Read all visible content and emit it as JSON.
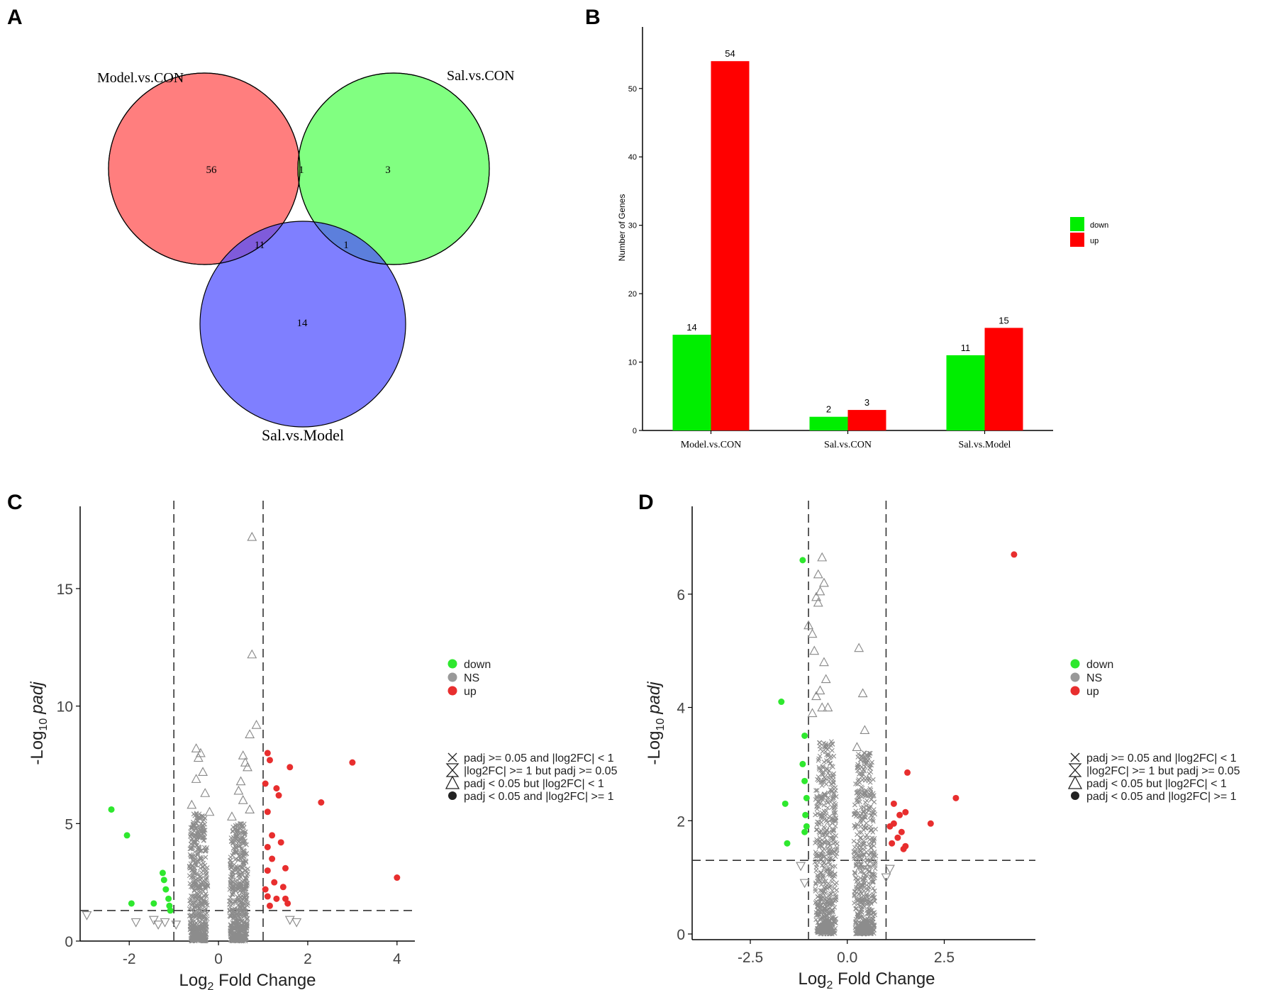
{
  "panel_labels": [
    "A",
    "B",
    "C",
    "D"
  ],
  "chart_data": [
    {
      "panel": "A",
      "type": "venn",
      "sets": [
        {
          "name": "Model.vs.CON",
          "color": "#ff5a5a"
        },
        {
          "name": "Sal.vs.CON",
          "color": "#33ff33"
        },
        {
          "name": "Sal.vs.Model",
          "color": "#4d4dff"
        }
      ],
      "regions": {
        "model_only": "56",
        "sal_con_only": "3",
        "sal_model_only": "14",
        "model_and_sal_con": "1",
        "model_and_sal_model": "11",
        "sal_con_and_sal_model": "1"
      }
    },
    {
      "panel": "B",
      "type": "bar",
      "categories": [
        "Model.vs.CON",
        "Sal.vs.CON",
        "Sal.vs.Model"
      ],
      "series": [
        {
          "name": "down",
          "color": "#00ee00",
          "values": [
            14,
            2,
            11
          ]
        },
        {
          "name": "up",
          "color": "#ff0000",
          "values": [
            54,
            3,
            15
          ]
        }
      ],
      "ylabel": "Number of Genes",
      "ylim": [
        0,
        59
      ],
      "yticks": [
        0,
        10,
        20,
        30,
        40,
        50
      ]
    },
    {
      "panel": "C",
      "type": "scatter",
      "xlabel_main": "Log",
      "xlabel_sub": "2",
      "xlabel_rest": " Fold Change",
      "ylabel_pre": "-Log",
      "ylabel_sub": "10",
      "ylabel_italic": "padj",
      "xlim": [
        -3.1,
        4.4
      ],
      "ylim": [
        0,
        18.5
      ],
      "xticks": [
        -2,
        0,
        2,
        4
      ],
      "xtick_labels": [
        "-2",
        "0",
        "2",
        "4"
      ],
      "yticks": [
        0,
        5,
        10,
        15
      ],
      "ytick_labels": [
        "0",
        "5",
        "10",
        "15"
      ],
      "vlines": [
        -1,
        1
      ],
      "hline": 1.3,
      "down_points": [
        [
          -2.4,
          5.6
        ],
        [
          -2.05,
          4.5
        ],
        [
          -1.95,
          1.6
        ],
        [
          -1.45,
          1.6
        ],
        [
          -1.25,
          2.9
        ],
        [
          -1.22,
          2.6
        ],
        [
          -1.18,
          2.2
        ],
        [
          -1.12,
          1.8
        ],
        [
          -1.1,
          1.5
        ],
        [
          -1.08,
          1.3
        ]
      ],
      "up_points": [
        [
          1.1,
          8.0
        ],
        [
          1.15,
          7.7
        ],
        [
          1.05,
          6.7
        ],
        [
          1.3,
          6.5
        ],
        [
          1.35,
          6.2
        ],
        [
          1.6,
          7.4
        ],
        [
          3.0,
          7.6
        ],
        [
          2.3,
          5.9
        ],
        [
          4.0,
          2.7
        ],
        [
          1.1,
          5.5
        ],
        [
          1.2,
          4.5
        ],
        [
          1.4,
          4.2
        ],
        [
          1.5,
          3.1
        ],
        [
          1.1,
          3.0
        ],
        [
          1.25,
          2.5
        ],
        [
          1.05,
          2.2
        ],
        [
          1.3,
          1.8
        ],
        [
          1.15,
          1.5
        ],
        [
          1.5,
          1.8
        ],
        [
          1.1,
          4.0
        ],
        [
          1.2,
          3.5
        ],
        [
          1.45,
          2.3
        ],
        [
          1.55,
          1.6
        ],
        [
          1.1,
          1.9
        ]
      ],
      "ns_triangles": [
        [
          0.75,
          17.2
        ],
        [
          0.75,
          12.2
        ],
        [
          0.85,
          9.2
        ],
        [
          0.7,
          8.8
        ],
        [
          -0.5,
          8.2
        ],
        [
          -0.4,
          8.0
        ],
        [
          -0.45,
          7.8
        ],
        [
          0.55,
          7.9
        ],
        [
          0.6,
          7.6
        ],
        [
          0.65,
          7.4
        ],
        [
          -0.35,
          7.2
        ],
        [
          -0.5,
          6.9
        ],
        [
          0.5,
          6.8
        ],
        [
          0.45,
          6.4
        ],
        [
          -0.3,
          6.3
        ],
        [
          0.55,
          6.0
        ],
        [
          -0.6,
          5.8
        ],
        [
          0.7,
          5.6
        ],
        [
          -0.2,
          5.5
        ],
        [
          0.3,
          5.3
        ]
      ],
      "ns_down_triangles": [
        [
          -2.95,
          1.1
        ],
        [
          -1.85,
          0.8
        ],
        [
          -1.45,
          0.9
        ],
        [
          -1.35,
          0.7
        ],
        [
          -1.2,
          0.8
        ],
        [
          1.6,
          0.9
        ],
        [
          1.75,
          0.8
        ],
        [
          -0.95,
          0.7
        ]
      ],
      "cloud": [
        {
          "cx": -0.45,
          "top": 5.5,
          "w": 0.35
        },
        {
          "cx": 0.45,
          "top": 5.0,
          "w": 0.35
        }
      ],
      "legend_color": [
        {
          "label": "down",
          "color": "#2ee82e"
        },
        {
          "label": "NS",
          "color": "#999999"
        },
        {
          "label": "up",
          "color": "#e82e2e"
        }
      ],
      "legend_shape": [
        "padj >= 0.05 and |log2FC| < 1",
        "|log2FC| >= 1 but padj >= 0.05",
        "padj < 0.05 but |log2FC| < 1",
        "padj < 0.05 and |log2FC| >= 1"
      ]
    },
    {
      "panel": "D",
      "type": "scatter",
      "xlabel_main": "Log",
      "xlabel_sub": "2",
      "xlabel_rest": " Fold Change",
      "ylabel_pre": "-Log",
      "ylabel_sub": "10",
      "ylabel_italic": "padj",
      "xlim": [
        -4.0,
        4.85
      ],
      "ylim": [
        -0.1,
        7.55
      ],
      "xticks": [
        -2.5,
        0.0,
        2.5
      ],
      "xtick_labels": [
        "-2.5",
        "0.0",
        "2.5"
      ],
      "yticks": [
        0,
        2,
        4,
        6
      ],
      "ytick_labels": [
        "0",
        "2",
        "4",
        "6"
      ],
      "vlines": [
        -1,
        1
      ],
      "hline": 1.3,
      "down_points": [
        [
          -1.15,
          6.6
        ],
        [
          -1.7,
          4.1
        ],
        [
          -1.6,
          2.3
        ],
        [
          -1.55,
          1.6
        ],
        [
          -1.1,
          3.5
        ],
        [
          -1.15,
          3.0
        ],
        [
          -1.1,
          2.7
        ],
        [
          -1.05,
          2.4
        ],
        [
          -1.08,
          2.1
        ],
        [
          -1.05,
          1.9
        ],
        [
          -1.1,
          1.8
        ]
      ],
      "up_points": [
        [
          4.3,
          6.7
        ],
        [
          2.8,
          2.4
        ],
        [
          2.15,
          1.95
        ],
        [
          1.55,
          2.85
        ],
        [
          1.5,
          2.15
        ],
        [
          1.35,
          2.1
        ],
        [
          1.2,
          1.95
        ],
        [
          1.1,
          1.9
        ],
        [
          1.15,
          1.6
        ],
        [
          1.3,
          1.7
        ],
        [
          1.45,
          1.5
        ],
        [
          1.5,
          1.55
        ],
        [
          1.2,
          2.3
        ],
        [
          1.4,
          1.8
        ]
      ],
      "ns_triangles": [
        [
          -0.65,
          6.65
        ],
        [
          -0.75,
          6.35
        ],
        [
          -0.6,
          6.2
        ],
        [
          -0.7,
          6.05
        ],
        [
          -0.8,
          5.95
        ],
        [
          -0.75,
          5.85
        ],
        [
          -1.0,
          5.45
        ],
        [
          -0.9,
          5.3
        ],
        [
          -0.85,
          5.0
        ],
        [
          -0.6,
          4.8
        ],
        [
          -0.55,
          4.5
        ],
        [
          -0.7,
          4.3
        ],
        [
          -0.8,
          4.2
        ],
        [
          -0.5,
          4.0
        ],
        [
          0.3,
          5.05
        ],
        [
          0.4,
          4.25
        ],
        [
          0.45,
          3.6
        ],
        [
          -0.9,
          3.9
        ],
        [
          -0.65,
          4.0
        ],
        [
          0.25,
          3.3
        ]
      ],
      "ns_down_triangles": [
        [
          -1.2,
          1.2
        ],
        [
          -1.1,
          0.9
        ],
        [
          1.1,
          1.15
        ],
        [
          1.0,
          1.0
        ]
      ],
      "cloud": [
        {
          "cx": -0.55,
          "top": 3.4,
          "w": 0.5
        },
        {
          "cx": 0.45,
          "top": 3.2,
          "w": 0.5
        }
      ],
      "legend_color": [
        {
          "label": "down",
          "color": "#2ee82e"
        },
        {
          "label": "NS",
          "color": "#999999"
        },
        {
          "label": "up",
          "color": "#e82e2e"
        }
      ],
      "legend_shape": [
        "padj >= 0.05 and |log2FC| < 1",
        "|log2FC| >= 1 but padj >= 0.05",
        "padj < 0.05 but |log2FC| < 1",
        "padj < 0.05 and |log2FC| >= 1"
      ]
    }
  ]
}
